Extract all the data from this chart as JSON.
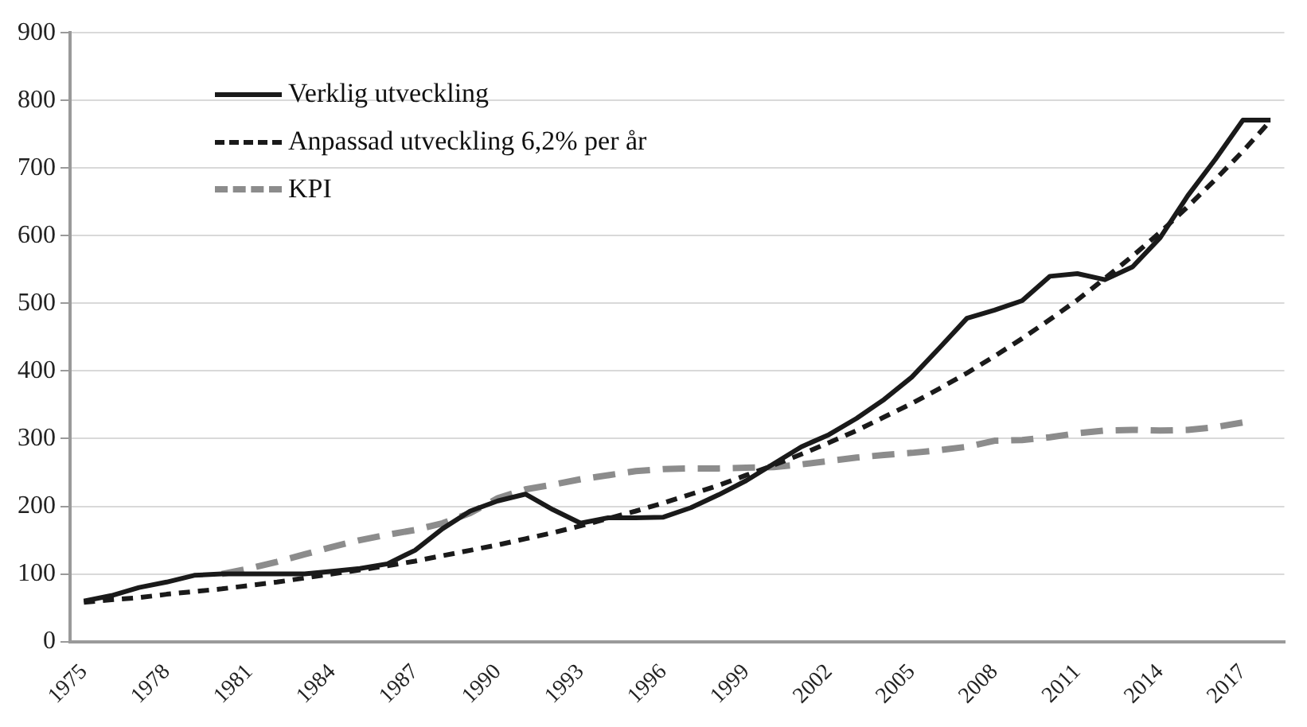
{
  "chart_data": {
    "type": "line",
    "categories": [
      "1975",
      null,
      null,
      "1978",
      null,
      null,
      "1981",
      null,
      null,
      "1984",
      null,
      null,
      "1987",
      null,
      null,
      "1990",
      null,
      null,
      "1993",
      null,
      null,
      "1996",
      null,
      null,
      "1999",
      null,
      null,
      "2002",
      null,
      null,
      "2005",
      null,
      null,
      "2008",
      null,
      null,
      "2011",
      null,
      null,
      "2014",
      null,
      null,
      "2017",
      null
    ],
    "series": [
      {
        "name": "Verklig utveckling",
        "color": "#1a1a1a",
        "line_style": "solid",
        "values": [
          60,
          68,
          80,
          88,
          98,
          100,
          100,
          100,
          100,
          104,
          108,
          115,
          135,
          167,
          193,
          208,
          218,
          195,
          175,
          183,
          183,
          184,
          198,
          217,
          238,
          263,
          288,
          306,
          330,
          358,
          391,
          434,
          478,
          490,
          504,
          540,
          544,
          535,
          554,
          597,
          659,
          713,
          771,
          771
        ]
      },
      {
        "name": "Anpassad utveckling 6,2% per år",
        "color": "#1a1a1a",
        "line_style": "dashed",
        "values": [
          58,
          62,
          65,
          70,
          74,
          78,
          83,
          88,
          94,
          100,
          106,
          112,
          119,
          127,
          135,
          143,
          152,
          161,
          171,
          182,
          193,
          205,
          218,
          231,
          246,
          261,
          277,
          294,
          312,
          332,
          352,
          374,
          397,
          422,
          448,
          476,
          505,
          537,
          570,
          605,
          643,
          683,
          725,
          770
        ]
      },
      {
        "name": "KPI",
        "color": "#8c8c8c",
        "line_style": "dashed",
        "values": [
          null,
          null,
          null,
          null,
          null,
          100,
          108,
          118,
          129,
          140,
          150,
          158,
          165,
          175,
          190,
          212,
          225,
          232,
          240,
          246,
          252,
          255,
          256,
          256,
          257,
          258,
          262,
          267,
          272,
          276,
          279,
          283,
          288,
          297,
          298,
          302,
          308,
          312,
          313,
          312,
          313,
          317,
          324,
          null
        ]
      }
    ],
    "ylim": [
      0,
      900
    ],
    "yticks": [
      0,
      100,
      200,
      300,
      400,
      500,
      600,
      700,
      800,
      900
    ],
    "grid": "y",
    "legend": "top left",
    "marker": "none"
  }
}
